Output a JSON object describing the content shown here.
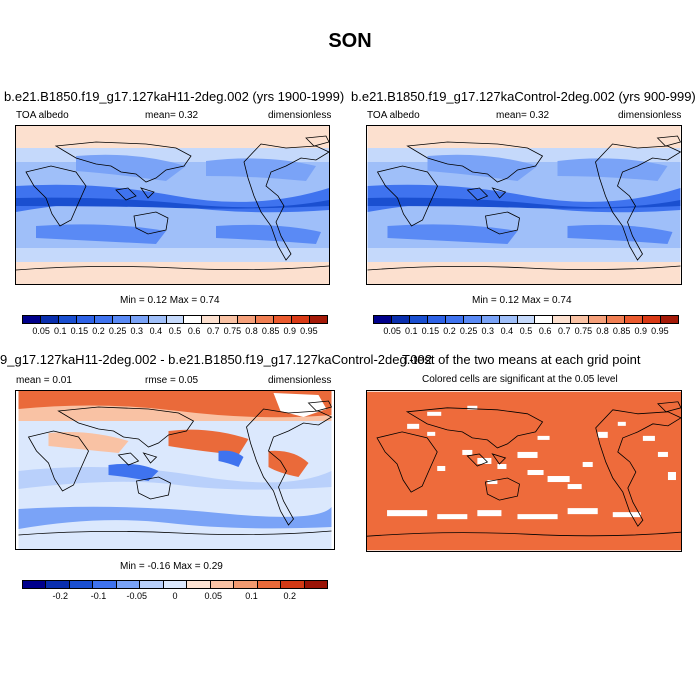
{
  "page": {
    "title": "SON"
  },
  "panels": [
    {
      "title": "b.e21.B1850.f19_g17.127kaH11-2deg.002 (yrs 1900-1999)",
      "left_label": "TOA albedo",
      "center_label": "mean=  0.32",
      "right_label": "dimensionless",
      "minmax": "Min =  0.12 Max =  0.74",
      "colorbar_labels": [
        "0.05",
        "0.1",
        "0.15",
        "0.2",
        "0.25",
        "0.3",
        "0.4",
        "0.5",
        "0.6",
        "0.7",
        "0.75",
        "0.8",
        "0.85",
        "0.9",
        "0.95"
      ],
      "field": "albedo"
    },
    {
      "title": "b.e21.B1850.f19_g17.127kaControl-2deg.002 (yrs 900-999)",
      "left_label": "TOA albedo",
      "center_label": "mean=  0.32",
      "right_label": "dimensionless",
      "minmax": "Min =  0.12 Max =  0.74",
      "colorbar_labels": [
        "0.05",
        "0.1",
        "0.15",
        "0.2",
        "0.25",
        "0.3",
        "0.4",
        "0.5",
        "0.6",
        "0.7",
        "0.75",
        "0.8",
        "0.85",
        "0.9",
        "0.95"
      ],
      "field": "albedo"
    },
    {
      "title": "9_g17.127kaH11-2deg.002 - b.e21.B1850.f19_g17.127kaControl-2deg.002",
      "left_label": "mean =  0.01",
      "center_label": "rmse =  0.05",
      "right_label": "dimensionless",
      "minmax": "Min =  -0.16 Max =  0.29",
      "colorbar_labels": [
        "-0.2",
        "-0.1",
        "-0.05",
        "0",
        "0.05",
        "0.1",
        "0.2"
      ],
      "field": "difference"
    },
    {
      "title": "T-test of the two means at each grid point",
      "subtitle": "Colored cells are significant at the 0.05 level",
      "field": "ttest"
    }
  ],
  "colors": {
    "albedo_scale": [
      "#00008b",
      "#0a2fae",
      "#1a4fd0",
      "#2e62e6",
      "#3f73ef",
      "#5a8af5",
      "#7aa3f7",
      "#9fbff9",
      "#c5d9fb",
      "#ffffff",
      "#fce0cf",
      "#f9c2a4",
      "#f5a07a",
      "#f07e52",
      "#ea5a2e",
      "#d93a16",
      "#a51a08"
    ],
    "diff_scale": [
      "#00008b",
      "#0a2fae",
      "#1a4fd0",
      "#3f73ef",
      "#7aa3f7",
      "#b9d0fb",
      "#dbe8fd",
      "#fde3d3",
      "#f9c2a4",
      "#f29a70",
      "#ea6a3a",
      "#d33a15",
      "#9b1407"
    ],
    "ttest_fill": "#ee6b3b",
    "coast": "#000000"
  }
}
